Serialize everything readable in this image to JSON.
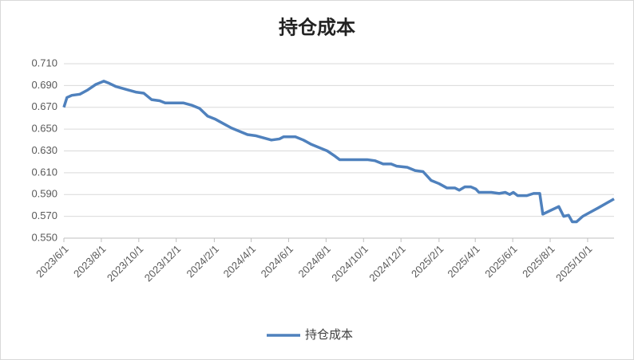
{
  "chart_data": {
    "type": "line",
    "title": "持仓成本",
    "x": [
      "2023/6/1",
      "2023/6/6",
      "2023/6/14",
      "2023/6/27",
      "2023/7/10",
      "2023/7/23",
      "2023/8/5",
      "2023/8/14",
      "2023/8/25",
      "2023/9/13",
      "2023/9/26",
      "2023/10/9",
      "2023/10/22",
      "2023/11/4",
      "2023/11/13",
      "2023/12/13",
      "2023/12/26",
      "2024/1/8",
      "2024/1/21",
      "2024/2/3",
      "2024/2/16",
      "2024/2/29",
      "2024/3/13",
      "2024/3/26",
      "2024/4/8",
      "2024/4/21",
      "2024/5/4",
      "2024/5/17",
      "2024/5/24",
      "2024/6/12",
      "2024/6/25",
      "2024/7/8",
      "2024/7/21",
      "2024/8/3",
      "2024/8/16",
      "2024/8/23",
      "2024/10/7",
      "2024/10/20",
      "2024/11/2",
      "2024/11/15",
      "2024/11/24",
      "2024/12/11",
      "2024/12/24",
      "2025/1/6",
      "2025/1/19",
      "2025/2/1",
      "2025/2/14",
      "2025/2/27",
      "2025/3/6",
      "2025/3/15",
      "2025/3/25",
      "2025/4/2",
      "2025/4/7",
      "2025/4/27",
      "2025/5/10",
      "2025/5/20",
      "2025/5/27",
      "2025/6/2",
      "2025/6/9",
      "2025/6/24",
      "2025/7/5",
      "2025/7/15",
      "2025/7/20",
      "2025/8/15",
      "2025/8/23",
      "2025/8/31",
      "2025/9/6",
      "2025/9/13",
      "2025/9/23",
      "2025/10/6",
      "2025/10/19",
      "2025/11/13"
    ],
    "series": [
      {
        "name": "持仓成本",
        "color": "#4f81bd",
        "values": [
          0.67,
          0.679,
          0.681,
          0.682,
          0.686,
          0.691,
          0.694,
          0.692,
          0.689,
          0.686,
          0.684,
          0.683,
          0.677,
          0.676,
          0.674,
          0.674,
          0.672,
          0.669,
          0.662,
          0.659,
          0.655,
          0.651,
          0.648,
          0.645,
          0.644,
          0.642,
          0.64,
          0.641,
          0.643,
          0.643,
          0.64,
          0.636,
          0.633,
          0.63,
          0.625,
          0.622,
          0.622,
          0.621,
          0.618,
          0.618,
          0.616,
          0.615,
          0.612,
          0.611,
          0.603,
          0.6,
          0.596,
          0.596,
          0.594,
          0.597,
          0.597,
          0.595,
          0.592,
          0.592,
          0.591,
          0.592,
          0.59,
          0.592,
          0.589,
          0.589,
          0.591,
          0.591,
          0.572,
          0.579,
          0.57,
          0.571,
          0.565,
          0.565,
          0.57,
          0.574,
          0.578,
          0.586
        ]
      }
    ],
    "xlim": [
      "2023/6/1",
      "2025/11/13"
    ],
    "xticks": [
      "2023/6/1",
      "2023/8/1",
      "2023/10/1",
      "2023/12/1",
      "2024/2/1",
      "2024/4/1",
      "2024/6/1",
      "2024/8/1",
      "2024/10/1",
      "2024/12/1",
      "2025/2/1",
      "2025/4/1",
      "2025/6/1",
      "2025/8/1",
      "2025/10/1"
    ],
    "ylim": [
      0.55,
      0.71
    ],
    "yticks": [
      {
        "value": 0.55,
        "label": "0.550"
      },
      {
        "value": 0.57,
        "label": "0.570"
      },
      {
        "value": 0.59,
        "label": "0.590"
      },
      {
        "value": 0.61,
        "label": "0.610"
      },
      {
        "value": 0.63,
        "label": "0.630"
      },
      {
        "value": 0.65,
        "label": "0.650"
      },
      {
        "value": 0.67,
        "label": "0.670"
      },
      {
        "value": 0.69,
        "label": "0.690"
      },
      {
        "value": 0.71,
        "label": "0.710"
      }
    ],
    "grid": true,
    "legend": "bottom"
  }
}
